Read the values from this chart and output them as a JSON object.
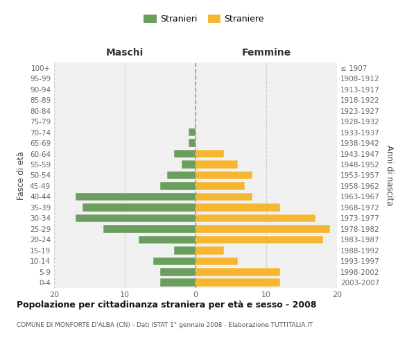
{
  "age_groups": [
    "0-4",
    "5-9",
    "10-14",
    "15-19",
    "20-24",
    "25-29",
    "30-34",
    "35-39",
    "40-44",
    "45-49",
    "50-54",
    "55-59",
    "60-64",
    "65-69",
    "70-74",
    "75-79",
    "80-84",
    "85-89",
    "90-94",
    "95-99",
    "100+"
  ],
  "birth_years": [
    "2003-2007",
    "1998-2002",
    "1993-1997",
    "1988-1992",
    "1983-1987",
    "1978-1982",
    "1973-1977",
    "1968-1972",
    "1963-1967",
    "1958-1962",
    "1953-1957",
    "1948-1952",
    "1943-1947",
    "1938-1942",
    "1933-1937",
    "1928-1932",
    "1923-1927",
    "1918-1922",
    "1913-1917",
    "1908-1912",
    "≤ 1907"
  ],
  "males": [
    5,
    5,
    6,
    3,
    8,
    13,
    17,
    16,
    17,
    5,
    4,
    2,
    3,
    1,
    1,
    0,
    0,
    0,
    0,
    0,
    0
  ],
  "females": [
    12,
    12,
    6,
    4,
    18,
    19,
    17,
    12,
    8,
    7,
    8,
    6,
    4,
    0,
    0,
    0,
    0,
    0,
    0,
    0,
    0
  ],
  "male_color": "#6b9e5e",
  "female_color": "#f5b731",
  "background_color": "#ffffff",
  "grid_color": "#cccccc",
  "bar_edge_color": "#ffffff",
  "title": "Popolazione per cittadinanza straniera per età e sesso - 2008",
  "subtitle": "COMUNE DI MONFORTE D'ALBA (CN) - Dati ISTAT 1° gennaio 2008 - Elaborazione TUTTITALIA.IT",
  "xlabel_left": "Maschi",
  "xlabel_right": "Femmine",
  "ylabel_left": "Fasce di età",
  "ylabel_right": "Anni di nascita",
  "legend_male": "Stranieri",
  "legend_female": "Straniere",
  "xlim": 20,
  "bar_height": 0.75,
  "ax_facecolor": "#f0f0f0"
}
